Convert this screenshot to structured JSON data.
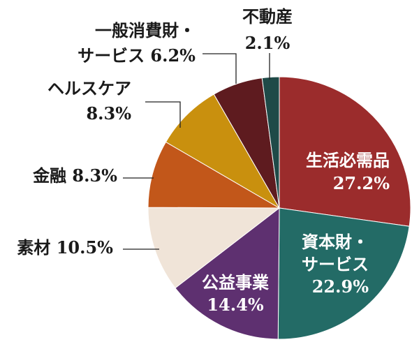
{
  "chart_data": {
    "type": "pie",
    "title": "",
    "start_angle_deg": 0,
    "direction": "clockwise",
    "slices": [
      {
        "label": "生活必需品",
        "value": 27.2,
        "value_text": "27.2%",
        "color": "#9b2c2c",
        "label_color": "#ffffff"
      },
      {
        "label": "資本財・サービス",
        "value": 22.9,
        "value_text": "22.9%",
        "color": "#236b66",
        "label_color": "#ffffff"
      },
      {
        "label": "公益事業",
        "value": 14.4,
        "value_text": "14.4%",
        "color": "#5e3070",
        "label_color": "#ffffff"
      },
      {
        "label": "素材",
        "value": 10.5,
        "value_text": "10.5%",
        "color": "#f0e4d8",
        "label_color": "#1a1a1a"
      },
      {
        "label": "金融",
        "value": 8.3,
        "value_text": "8.3%",
        "color": "#c2571a",
        "label_color": "#1a1a1a"
      },
      {
        "label": "ヘルスケア",
        "value": 8.3,
        "value_text": "8.3%",
        "color": "#c9900e",
        "label_color": "#1a1a1a"
      },
      {
        "label": "一般消費財・サービス",
        "value": 6.2,
        "value_text": "6.2%",
        "color": "#5e1b1f",
        "label_color": "#1a1a1a"
      },
      {
        "label": "不動産",
        "value": 2.1,
        "value_text": "2.1%",
        "color": "#1f4a48",
        "label_color": "#1a1a1a"
      }
    ]
  }
}
